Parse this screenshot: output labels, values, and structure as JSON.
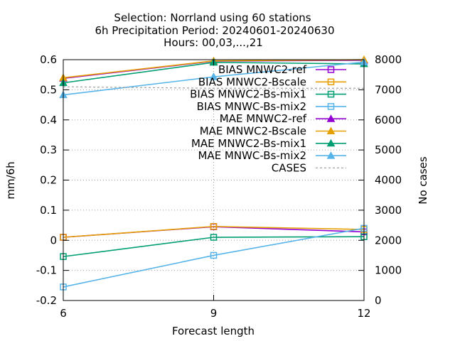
{
  "chart_data": {
    "type": "line",
    "title_lines": [
      "Selection: Norrland using    60 stations",
      "6h Precipitation   Period: 20240601-20240630",
      "Hours: 00,03,...,21"
    ],
    "xlabel": "Forecast length",
    "ylabel": "mm/6h",
    "y2label": "No cases",
    "x": [
      6,
      9,
      12
    ],
    "xlim": [
      6,
      12
    ],
    "ylim": [
      -0.2,
      0.6
    ],
    "y2lim": [
      0,
      8000
    ],
    "xticks": [
      6,
      9,
      12
    ],
    "yticks": [
      -0.2,
      -0.1,
      0,
      0.1,
      0.2,
      0.3,
      0.4,
      0.5,
      0.6
    ],
    "y2ticks": [
      0,
      1000,
      2000,
      3000,
      4000,
      5000,
      6000,
      7000,
      8000
    ],
    "ytick_labels": [
      "-0.2",
      "-0.1",
      "0",
      "0.1",
      "0.2",
      "0.3",
      "0.4",
      "0.5",
      "0.6"
    ],
    "y2tick_labels": [
      "0",
      "1000",
      "2000",
      "3000",
      "4000",
      "5000",
      "6000",
      "7000",
      "8000"
    ],
    "grid": true,
    "legend_position": "top-right",
    "series": [
      {
        "name": "BIAS MNWC2-ref",
        "color": "#9400d3",
        "marker": "square-open",
        "axis": "y",
        "values": [
          0.01,
          0.045,
          0.028
        ]
      },
      {
        "name": "BIAS MNWC2-Bscale",
        "color": "#e69f00",
        "marker": "square-open",
        "axis": "y",
        "values": [
          0.01,
          0.046,
          0.036
        ]
      },
      {
        "name": "BIAS MNWC2-Bs-mix1",
        "color": "#009e73",
        "marker": "square-open",
        "axis": "y",
        "values": [
          -0.054,
          0.01,
          0.012
        ]
      },
      {
        "name": "BIAS MNWC-Bs-mix2",
        "color": "#56b4e9",
        "marker": "square-open",
        "axis": "y",
        "values": [
          -0.155,
          -0.05,
          0.04
        ]
      },
      {
        "name": "MAE MNWC2-ref",
        "color": "#9400d3",
        "marker": "triangle-filled",
        "axis": "y",
        "values": [
          0.538,
          0.595,
          0.598
        ]
      },
      {
        "name": "MAE MNWC2-Bscale",
        "color": "#e69f00",
        "marker": "triangle-filled",
        "axis": "y",
        "values": [
          0.54,
          0.596,
          0.6
        ]
      },
      {
        "name": "MAE MNWC2-Bs-mix1",
        "color": "#009e73",
        "marker": "triangle-filled",
        "axis": "y",
        "values": [
          0.523,
          0.591,
          0.586
        ]
      },
      {
        "name": "MAE MNWC-Bs-mix2",
        "color": "#56b4e9",
        "marker": "triangle-filled",
        "axis": "y",
        "values": [
          0.483,
          0.543,
          0.592
        ]
      },
      {
        "name": "CASES",
        "color": "#a0a0a0",
        "marker": "none",
        "dashed": true,
        "axis": "y2",
        "values": [
          7100,
          7050,
          7050
        ]
      }
    ]
  }
}
